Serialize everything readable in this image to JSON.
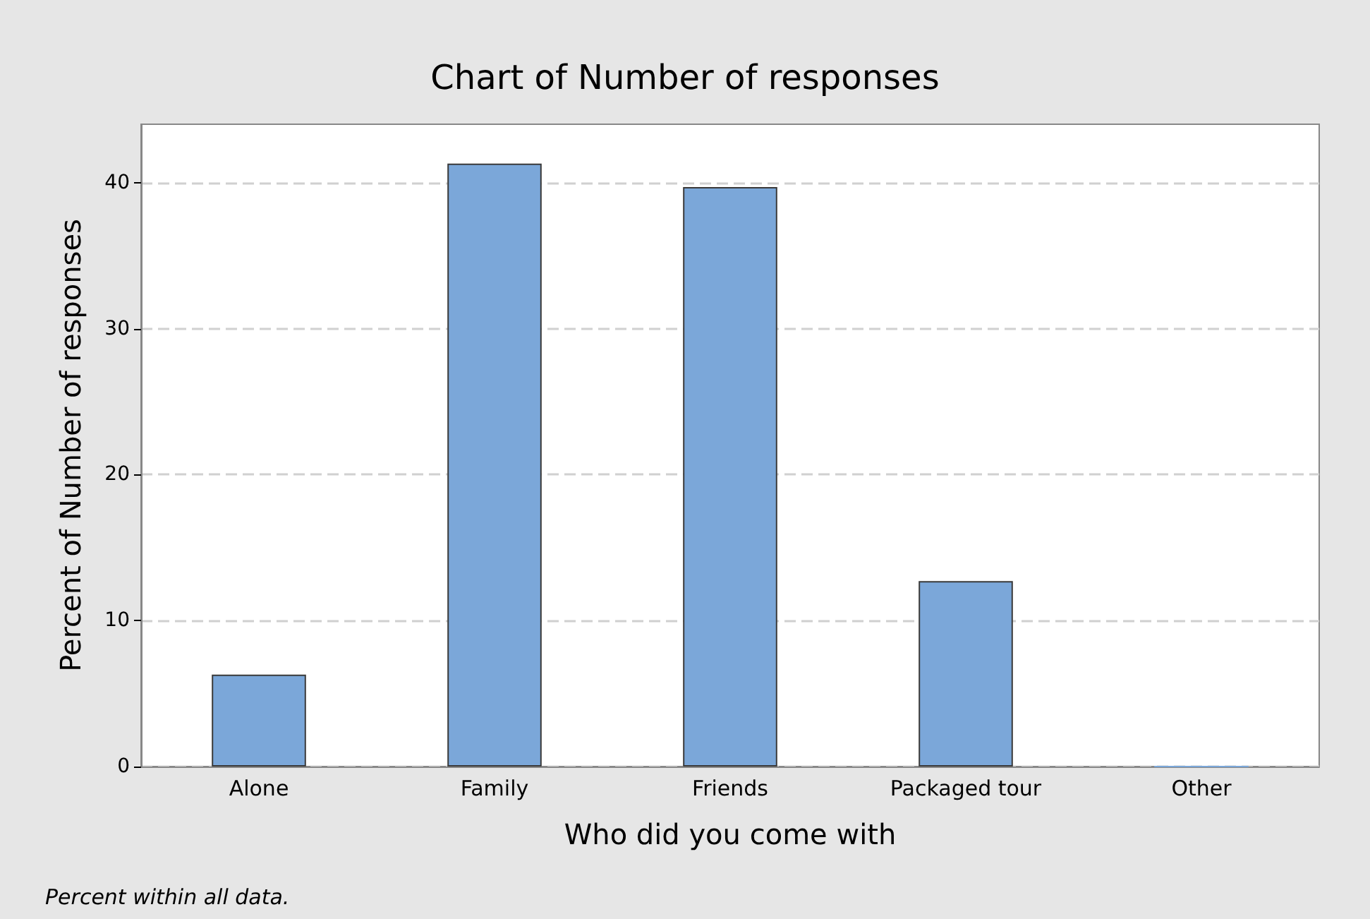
{
  "chart_data": {
    "type": "bar",
    "title": "Chart of Number of responses",
    "xlabel": "Who did you come with",
    "ylabel": "Percent of Number of responses",
    "categories": [
      "Alone",
      "Family",
      "Friends",
      "Packaged tour",
      "Other"
    ],
    "values": [
      6.3,
      41.3,
      39.7,
      12.7,
      0
    ],
    "color": "#7ba7d9",
    "ylim": [
      0,
      44
    ],
    "yticks": [
      0,
      10,
      20,
      30,
      40
    ],
    "grid": "y",
    "annotations": [
      "Percent within all data."
    ]
  }
}
